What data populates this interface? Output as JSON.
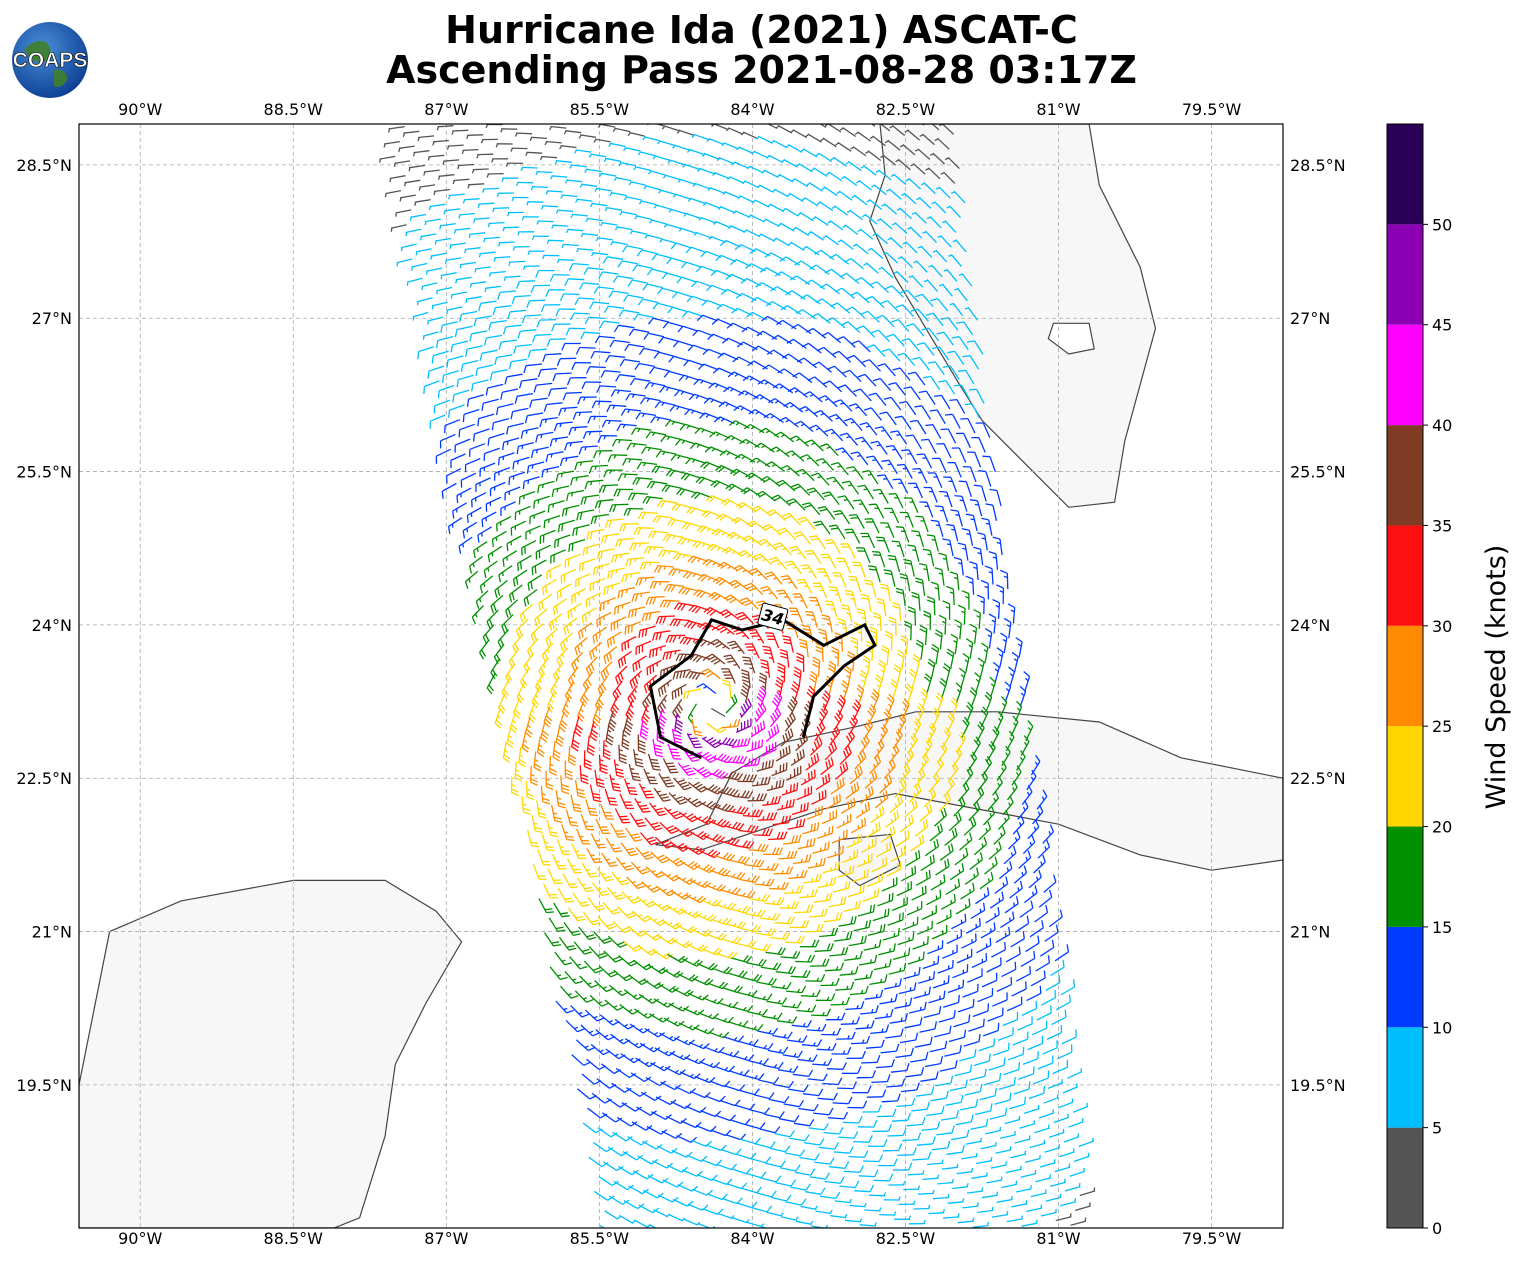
{
  "title": {
    "line1": "Hurricane Ida (2021) ASCAT-C",
    "line2": "Ascending Pass 2021-08-28 03:17Z"
  },
  "logo": {
    "text": "COAPS",
    "icon": "globe-logo-icon"
  },
  "map": {
    "lon_ticks": [
      "90°W",
      "88.5°W",
      "87°W",
      "85.5°W",
      "84°W",
      "82.5°W",
      "81°W",
      "79.5°W"
    ],
    "lat_ticks": [
      "28.5°N",
      "27°N",
      "25.5°N",
      "24°N",
      "22.5°N",
      "21°N",
      "19.5°N"
    ],
    "lon_range": [
      -90.6,
      -78.8
    ],
    "lat_range": [
      18.1,
      28.9
    ],
    "grid": true,
    "contour_label": "34"
  },
  "colorbar": {
    "label": "Wind Speed (knots)",
    "ticks": [
      "0",
      "5",
      "10",
      "15",
      "20",
      "25",
      "30",
      "35",
      "40",
      "45",
      "50"
    ],
    "bins": [
      {
        "min": 0,
        "max": 5,
        "color": "#555555"
      },
      {
        "min": 5,
        "max": 10,
        "color": "#00bfff"
      },
      {
        "min": 10,
        "max": 15,
        "color": "#003cff"
      },
      {
        "min": 15,
        "max": 20,
        "color": "#009000"
      },
      {
        "min": 20,
        "max": 25,
        "color": "#ffd700"
      },
      {
        "min": 25,
        "max": 30,
        "color": "#ff8c00"
      },
      {
        "min": 30,
        "max": 35,
        "color": "#ff1010"
      },
      {
        "min": 35,
        "max": 40,
        "color": "#7f3b24"
      },
      {
        "min": 40,
        "max": 45,
        "color": "#ff00ff"
      },
      {
        "min": 45,
        "max": 50,
        "color": "#8b00b3"
      },
      {
        "min": 50,
        "max": 55,
        "color": "#2b0057"
      }
    ]
  },
  "wind_field": {
    "center_lat": 23.2,
    "center_lon": -84.4,
    "swath_west_lon_north": -87.6,
    "swath_west_lon_south": -85.5,
    "swath_east_lon_north": -82.0,
    "swath_east_lon_south": -80.7
  }
}
